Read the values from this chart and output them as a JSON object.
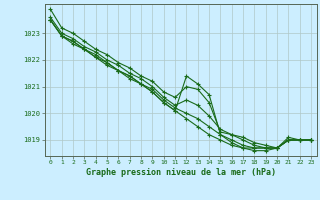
{
  "background_color": "#cceeff",
  "grid_color": "#b0c8c8",
  "line_color": "#1a6b1a",
  "title": "Graphe pression niveau de la mer (hPa)",
  "xlim": [
    -0.5,
    23.5
  ],
  "ylim": [
    1018.4,
    1024.1
  ],
  "yticks": [
    1019,
    1020,
    1021,
    1022,
    1023
  ],
  "xticks": [
    0,
    1,
    2,
    3,
    4,
    5,
    6,
    7,
    8,
    9,
    10,
    11,
    12,
    13,
    14,
    15,
    16,
    17,
    18,
    19,
    20,
    21,
    22,
    23
  ],
  "series": [
    [
      1023.9,
      1023.2,
      1023.0,
      1022.7,
      1022.4,
      1022.2,
      1021.9,
      1021.7,
      1021.4,
      1021.2,
      1020.8,
      1020.6,
      1021.0,
      1020.9,
      1020.4,
      1019.3,
      1019.2,
      1019.1,
      1018.9,
      1018.8,
      1018.7,
      1019.1,
      1019.0,
      1019.0
    ],
    [
      1023.6,
      1023.0,
      1022.8,
      1022.5,
      1022.3,
      1022.0,
      1021.8,
      1021.5,
      1021.3,
      1021.0,
      1020.6,
      1020.3,
      1020.5,
      1020.3,
      1019.9,
      1019.4,
      1019.2,
      1019.0,
      1018.8,
      1018.7,
      1018.7,
      1019.0,
      1019.0,
      1019.0
    ],
    [
      1023.5,
      1022.9,
      1022.7,
      1022.4,
      1022.2,
      1021.9,
      1021.6,
      1021.4,
      1021.1,
      1020.9,
      1020.5,
      1020.2,
      1020.0,
      1019.8,
      1019.5,
      1019.2,
      1019.0,
      1018.8,
      1018.7,
      1018.7,
      1018.7,
      1019.0,
      1019.0,
      1019.0
    ],
    [
      1023.5,
      1022.9,
      1022.7,
      1022.4,
      1022.1,
      1021.9,
      1021.6,
      1021.4,
      1021.1,
      1020.8,
      1020.4,
      1020.1,
      1021.4,
      1021.1,
      1020.7,
      1019.2,
      1018.9,
      1018.7,
      1018.7,
      1018.7,
      1018.7,
      1019.0,
      1019.0,
      1019.0
    ],
    [
      1023.5,
      1022.9,
      1022.6,
      1022.4,
      1022.1,
      1021.8,
      1021.6,
      1021.3,
      1021.1,
      1020.8,
      1020.4,
      1020.1,
      1019.8,
      1019.5,
      1019.2,
      1019.0,
      1018.8,
      1018.7,
      1018.6,
      1018.6,
      1018.7,
      1019.0,
      1019.0,
      1019.0
    ]
  ]
}
